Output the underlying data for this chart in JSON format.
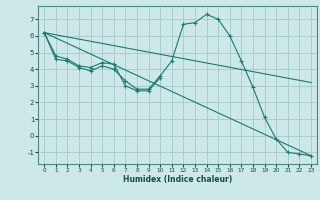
{
  "background_color": "#cce8e8",
  "grid_color": "#aacccc",
  "line_color": "#1a7a6e",
  "xlabel": "Humidex (Indice chaleur)",
  "xlim": [
    -0.5,
    23.5
  ],
  "ylim": [
    -1.7,
    7.8
  ],
  "yticks": [
    -1,
    0,
    1,
    2,
    3,
    4,
    5,
    6,
    7
  ],
  "xticks": [
    0,
    1,
    2,
    3,
    4,
    5,
    6,
    7,
    8,
    9,
    10,
    11,
    12,
    13,
    14,
    15,
    16,
    17,
    18,
    19,
    20,
    21,
    22,
    23
  ],
  "series": [
    {
      "x": [
        0,
        1,
        2,
        3,
        4,
        5,
        6,
        7,
        8,
        9,
        10
      ],
      "y": [
        6.2,
        4.8,
        4.6,
        4.2,
        4.1,
        4.4,
        4.3,
        3.0,
        2.7,
        2.7,
        3.5
      ],
      "marker": true
    },
    {
      "x": [
        0,
        1,
        2,
        3,
        4,
        5,
        6,
        7,
        8,
        9,
        10,
        11,
        12,
        13,
        14,
        15,
        16,
        17,
        18,
        19,
        20,
        21,
        22,
        23
      ],
      "y": [
        6.2,
        4.6,
        4.5,
        4.1,
        3.9,
        4.2,
        4.0,
        3.3,
        2.8,
        2.8,
        3.6,
        4.5,
        6.7,
        6.8,
        7.3,
        7.0,
        6.0,
        4.5,
        2.9,
        1.1,
        -0.2,
        -1.0,
        -1.1,
        -1.2
      ],
      "marker": true
    },
    {
      "x": [
        0,
        23
      ],
      "y": [
        6.2,
        -1.2
      ],
      "marker": false
    },
    {
      "x": [
        0,
        23
      ],
      "y": [
        6.2,
        3.2
      ],
      "marker": false
    }
  ]
}
